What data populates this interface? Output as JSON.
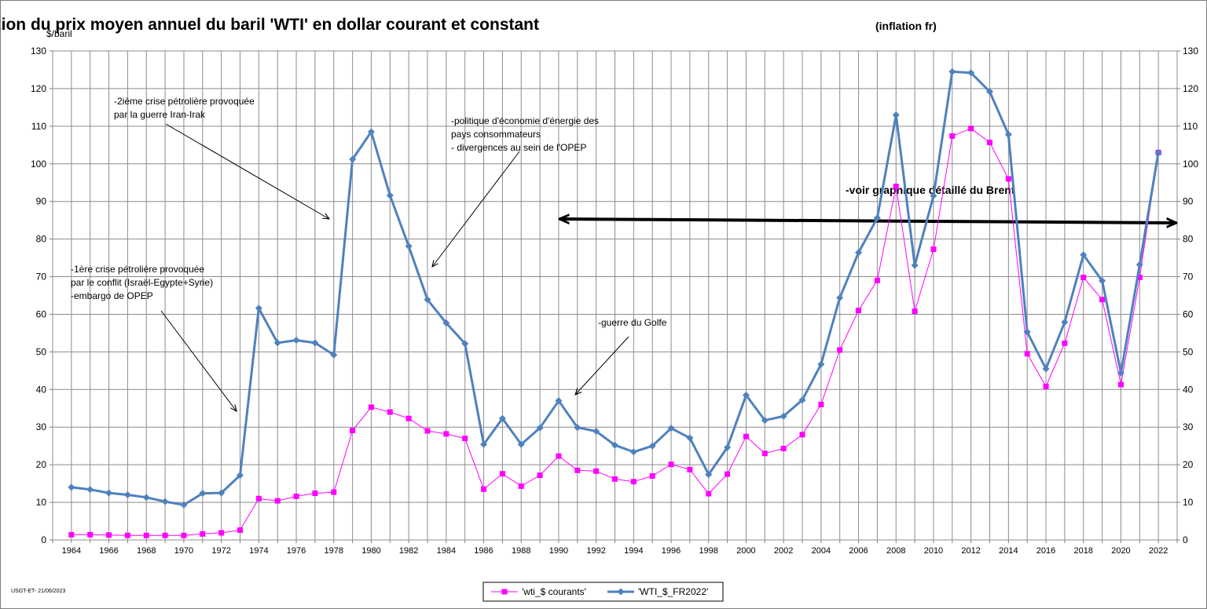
{
  "chart_data": {
    "type": "line",
    "title": "Evolution du prix moyen annuel du baril 'WTI' en dollar courant et constant",
    "title_note": "(inflation fr)",
    "ylabel": "$/baril",
    "ylim": [
      0,
      130
    ],
    "yticks": [
      0,
      10,
      20,
      30,
      40,
      50,
      60,
      70,
      80,
      90,
      100,
      110,
      120,
      130
    ],
    "xlim": [
      1964,
      2022
    ],
    "xticks": [
      1964,
      1966,
      1968,
      1970,
      1972,
      1974,
      1976,
      1978,
      1980,
      1982,
      1984,
      1986,
      1988,
      1990,
      1992,
      1994,
      1996,
      1998,
      2000,
      2002,
      2004,
      2006,
      2008,
      2010,
      2012,
      2014,
      2016,
      2018,
      2020,
      2022
    ],
    "grid": true,
    "legend": "bottom-center",
    "x": [
      1964,
      1965,
      1966,
      1967,
      1968,
      1969,
      1970,
      1971,
      1972,
      1973,
      1974,
      1975,
      1976,
      1977,
      1978,
      1979,
      1980,
      1981,
      1982,
      1983,
      1984,
      1985,
      1986,
      1987,
      1988,
      1989,
      1990,
      1991,
      1992,
      1993,
      1994,
      1995,
      1996,
      1997,
      1998,
      1999,
      2000,
      2001,
      2002,
      2003,
      2004,
      2005,
      2006,
      2007,
      2008,
      2009,
      2010,
      2011,
      2012,
      2013,
      2014,
      2015,
      2016,
      2017,
      2018,
      2019,
      2020,
      2021,
      2022
    ],
    "series": [
      {
        "name": "'wti_$ courants'",
        "color": "#ff00ff",
        "marker": "square",
        "values": [
          1.4,
          1.4,
          1.3,
          1.2,
          1.2,
          1.2,
          1.2,
          1.6,
          1.9,
          2.6,
          11.0,
          10.4,
          11.6,
          12.4,
          12.7,
          29.1,
          35.3,
          34.0,
          32.3,
          29.0,
          28.2,
          27.0,
          13.5,
          17.6,
          14.3,
          17.2,
          22.3,
          18.5,
          18.3,
          16.2,
          15.5,
          17.0,
          20.1,
          18.7,
          12.3,
          17.5,
          27.5,
          23.0,
          24.3,
          28.0,
          36.0,
          50.5,
          61.0,
          69.0,
          94.0,
          60.8,
          77.3,
          107.4,
          109.4,
          105.7,
          96.0,
          49.5,
          40.8,
          52.3,
          69.8,
          63.9,
          41.3,
          69.8,
          103.0
        ]
      },
      {
        "name": "'WTI_$_FR2022'",
        "color": "#4f81bd",
        "marker": "diamond",
        "values": [
          14.0,
          13.4,
          12.5,
          12.0,
          11.3,
          10.2,
          9.3,
          12.4,
          12.5,
          17.2,
          61.6,
          52.4,
          53.1,
          52.4,
          49.2,
          101.2,
          108.5,
          91.6,
          78.1,
          63.9,
          57.7,
          52.2,
          25.4,
          32.3,
          25.4,
          29.8,
          37.0,
          29.9,
          28.9,
          25.2,
          23.4,
          25.0,
          29.7,
          27.1,
          17.4,
          24.6,
          38.5,
          31.8,
          32.9,
          37.2,
          46.7,
          64.4,
          76.4,
          85.6,
          113.0,
          73.0,
          91.5,
          124.5,
          124.2,
          119.2,
          107.8,
          55.3,
          45.5,
          57.9,
          75.8,
          68.9,
          44.4,
          73.2,
          103.0
        ]
      }
    ],
    "annotations": [
      {
        "id": "crisis2",
        "lines": [
          "-2ième crise pétrolière provoquée",
          "par la guerre Iran-Irak"
        ]
      },
      {
        "id": "policy",
        "lines": [
          "-politique d'économie d'énergie des",
          "pays consommateurs",
          "-  divergences au sein de l'OPEP"
        ]
      },
      {
        "id": "crisis1",
        "lines": [
          "-1ère crise pétrolière provoquée",
          "par le conflit (Israël-Egypte+Syrie)",
          "-embargo  de OPEP"
        ]
      },
      {
        "id": "gulf",
        "lines": [
          "-guerre du Golfe"
        ]
      },
      {
        "id": "brent",
        "lines": [
          "-voir graphique détaillé du Brent"
        ]
      }
    ],
    "footer": "USGT-ET-  21/06/2023"
  }
}
